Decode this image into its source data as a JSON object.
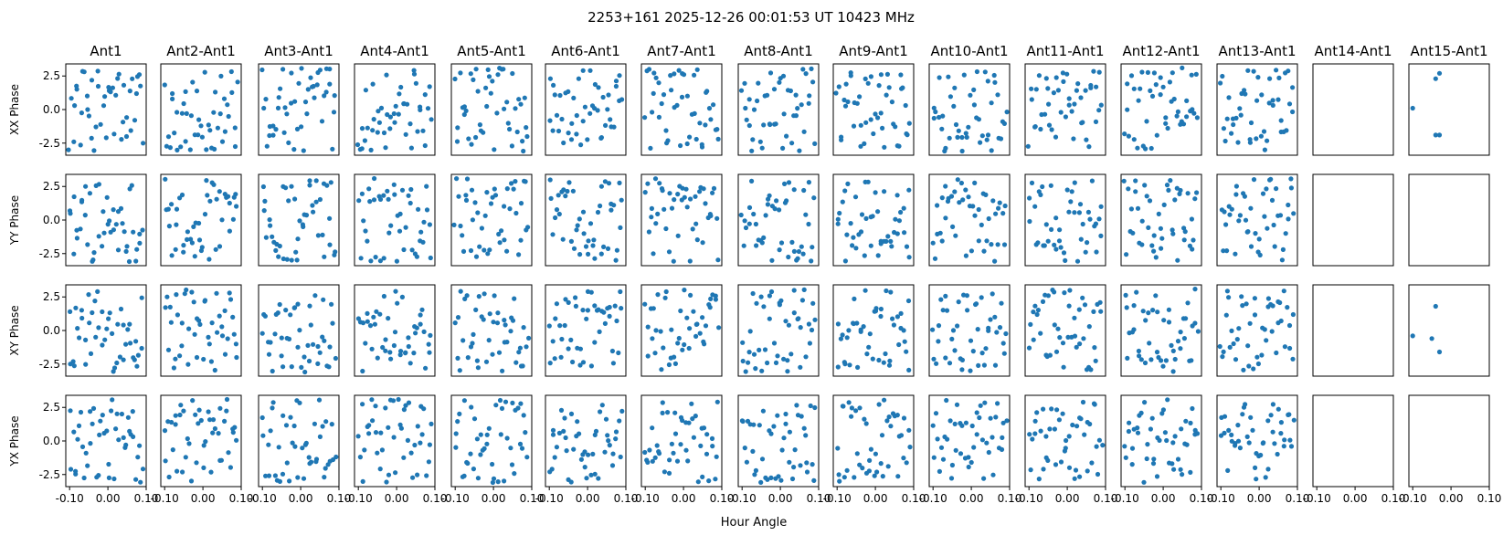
{
  "suptitle": "2253+161  2025-12-26 00:01:53 UT  10423 MHz",
  "xlabel": "Hour Angle",
  "chart_data": {
    "type": "scatter",
    "title": "2253+161  2025-12-26 00:01:53 UT  10423 MHz",
    "xlabel": "Hour Angle",
    "columns": [
      "Ant1",
      "Ant2-Ant1",
      "Ant3-Ant1",
      "Ant4-Ant1",
      "Ant5-Ant1",
      "Ant6-Ant1",
      "Ant7-Ant1",
      "Ant8-Ant1",
      "Ant9-Ant1",
      "Ant10-Ant1",
      "Ant11-Ant1",
      "Ant12-Ant1",
      "Ant13-Ant1",
      "Ant14-Ant1",
      "Ant15-Ant1"
    ],
    "rows": [
      "XX Phase",
      "YY Phase",
      "XY Phase",
      "YX Phase"
    ],
    "xlim": [
      -0.11,
      0.1
    ],
    "ylim": [
      -3.4,
      3.4
    ],
    "xticks": [
      -0.1,
      0.0,
      0.1
    ],
    "xtick_labels": [
      "-0.10",
      "0.00",
      "0.10"
    ],
    "yticks": [
      2.5,
      0.0,
      -2.5
    ],
    "ytick_labels": [
      "2.5",
      "0.0",
      "-2.5"
    ],
    "marker_color": "#1f77b4",
    "points_per_panel_note": "approx. 45 points per populated panel, phase values randomly scattered between -pi and pi",
    "panel_point_counts": {
      "Ant1-Ant13": 45,
      "Ant14-Ant1": 0,
      "Ant15-Ant1": {
        "XX Phase": 5,
        "YY Phase": 0,
        "XY Phase": 4,
        "YX Phase": 0
      }
    },
    "sparse_panels": {
      "Ant15-Ant1|XX Phase": {
        "x": [
          -0.1,
          -0.04,
          -0.03,
          -0.04,
          -0.03
        ],
        "y": [
          0.1,
          2.3,
          2.7,
          -1.9,
          -1.9
        ]
      },
      "Ant15-Ant1|XY Phase": {
        "x": [
          -0.1,
          -0.05,
          -0.04,
          -0.03
        ],
        "y": [
          -0.4,
          -0.6,
          1.8,
          -1.6
        ]
      }
    }
  }
}
